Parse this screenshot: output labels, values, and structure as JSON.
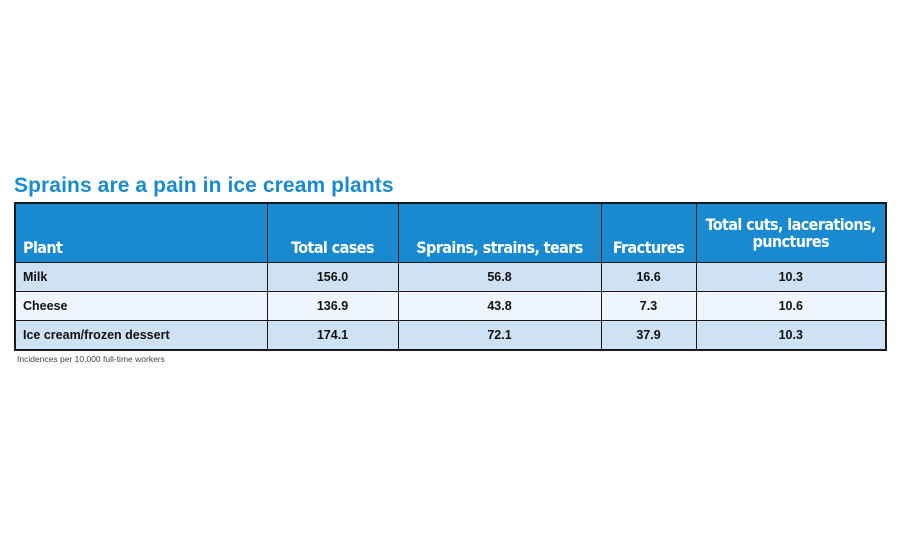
{
  "chart_data": {
    "type": "table",
    "title": "Sprains are a pain in ice cream plants",
    "columns": [
      "Plant",
      "Total cases",
      "Sprains, strains, tears",
      "Fractures",
      "Total cuts, lacerations, punctures"
    ],
    "rows": [
      {
        "plant": "Milk",
        "values": [
          "156.0",
          "56.8",
          "16.6",
          "10.3"
        ]
      },
      {
        "plant": "Cheese",
        "values": [
          "136.9",
          "43.8",
          "7.3",
          "10.6"
        ]
      },
      {
        "plant": "Ice cream/frozen dessert",
        "values": [
          "174.1",
          "72.1",
          "37.9",
          "10.3"
        ]
      }
    ],
    "note": "Incidences per 10,000 full-time workers"
  },
  "colors": {
    "title": "#1b8bd1",
    "header_bg": "#1a8ad0",
    "header_text": "#ffffff",
    "row_odd_bg": "#cfe2f3",
    "row_even_bg": "#eef5fc",
    "border": "#1a1a1a"
  }
}
